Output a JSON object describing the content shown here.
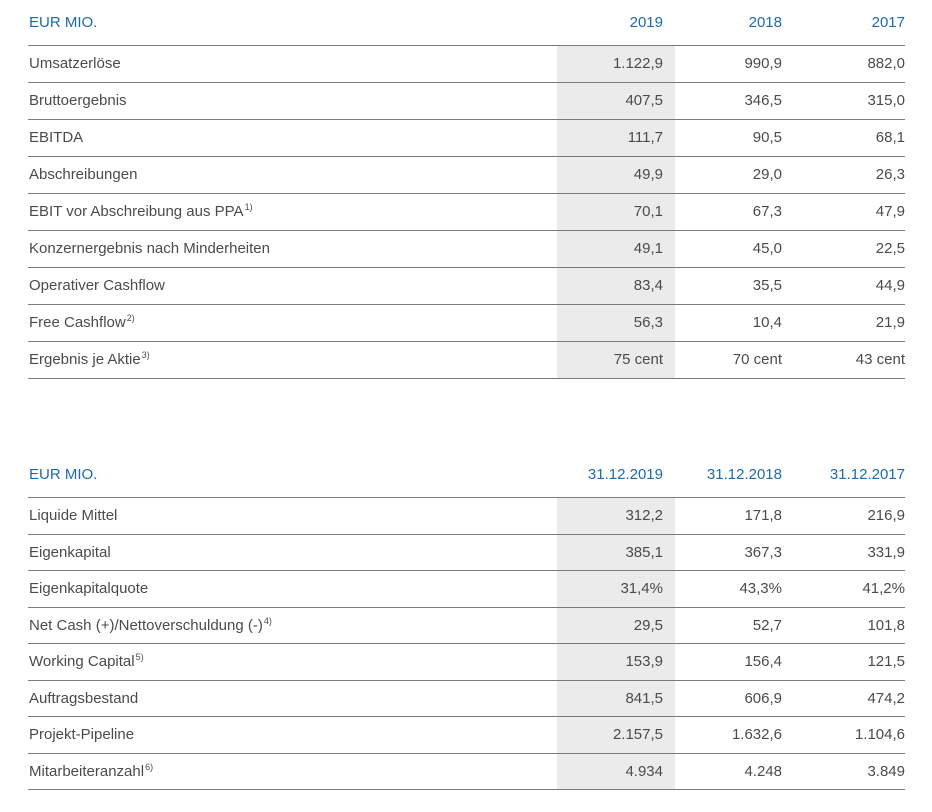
{
  "colors": {
    "accent": "#1e6ba8",
    "text": "#4b4b4a",
    "highlight": "#ebebeb",
    "line": "#7c7c7c"
  },
  "tables": [
    {
      "title": "EUR MIO.",
      "columns": [
        "2019",
        "2018",
        "2017"
      ],
      "rows": [
        {
          "label": "Umsatzerlöse",
          "footnote": "",
          "values": [
            "1.122,9",
            "990,9",
            "882,0"
          ]
        },
        {
          "label": "Bruttoergebnis",
          "footnote": "",
          "values": [
            "407,5",
            "346,5",
            "315,0"
          ]
        },
        {
          "label": "EBITDA",
          "footnote": "",
          "values": [
            "111,7",
            "90,5",
            "68,1"
          ]
        },
        {
          "label": "Abschreibungen",
          "footnote": "",
          "values": [
            "49,9",
            "29,0",
            "26,3"
          ]
        },
        {
          "label": "EBIT vor Abschreibung aus PPA",
          "footnote": "1)",
          "values": [
            "70,1",
            "67,3",
            "47,9"
          ]
        },
        {
          "label": "Konzernergebnis nach Minderheiten",
          "footnote": "",
          "values": [
            "49,1",
            "45,0",
            "22,5"
          ]
        },
        {
          "label": "Operativer Cashflow",
          "footnote": "",
          "values": [
            "83,4",
            "35,5",
            "44,9"
          ]
        },
        {
          "label": "Free Cashflow",
          "footnote": "2)",
          "values": [
            "56,3",
            "10,4",
            "21,9"
          ]
        },
        {
          "label": "Ergebnis je Aktie",
          "footnote": "3)",
          "values": [
            "75 cent",
            "70 cent",
            "43 cent"
          ]
        }
      ]
    },
    {
      "title": "EUR MIO.",
      "columns": [
        "31.12.2019",
        "31.12.2018",
        "31.12.2017"
      ],
      "rows": [
        {
          "label": "Liquide Mittel",
          "footnote": "",
          "values": [
            "312,2",
            "171,8",
            "216,9"
          ]
        },
        {
          "label": "Eigenkapital",
          "footnote": "",
          "values": [
            "385,1",
            "367,3",
            "331,9"
          ]
        },
        {
          "label": "Eigenkapitalquote",
          "footnote": "",
          "values": [
            "31,4%",
            "43,3%",
            "41,2%"
          ]
        },
        {
          "label": "Net Cash (+)/Nettoverschuldung (-)",
          "footnote": "4)",
          "values": [
            "29,5",
            "52,7",
            "101,8"
          ]
        },
        {
          "label": "Working Capital",
          "footnote": "5)",
          "values": [
            "153,9",
            "156,4",
            "121,5"
          ]
        },
        {
          "label": "Auftragsbestand",
          "footnote": "",
          "values": [
            "841,5",
            "606,9",
            "474,2"
          ]
        },
        {
          "label": "Projekt-Pipeline",
          "footnote": "",
          "values": [
            "2.157,5",
            "1.632,6",
            "1.104,6"
          ]
        },
        {
          "label": "Mitarbeiteranzahl",
          "footnote": "6)",
          "values": [
            "4.934",
            "4.248",
            "3.849"
          ]
        }
      ]
    }
  ]
}
